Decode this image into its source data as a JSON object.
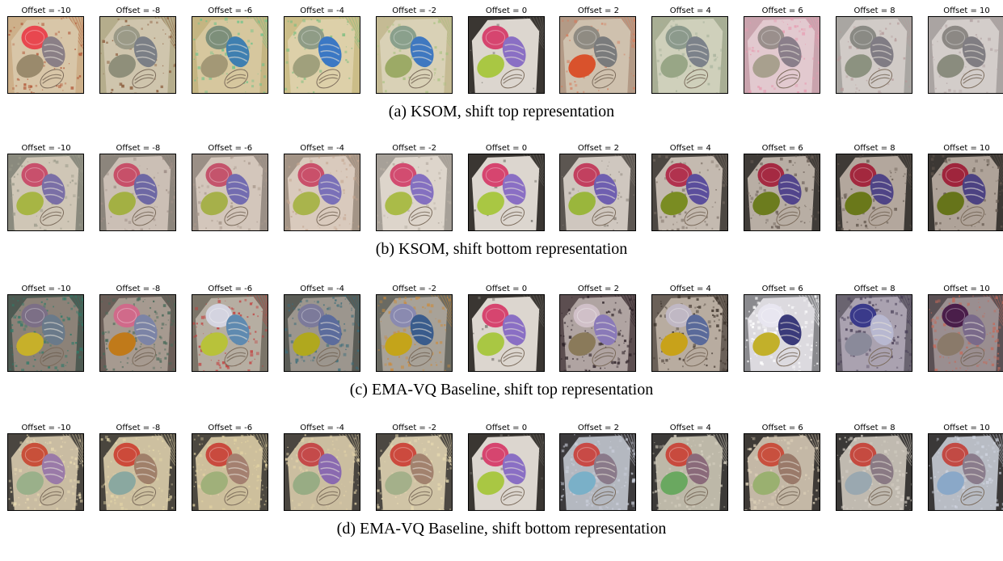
{
  "rows": [
    {
      "caption": "(a) KSOM, shift top representation",
      "panels": [
        {
          "label": "Offset = -10",
          "bg": "#cdb08a",
          "board": "#d8c6a8",
          "m1": "#e8474f",
          "m2": "#8a7f86",
          "m3": "#9a8a6c",
          "noise": "#b35a3a",
          "noise_level": 0.35
        },
        {
          "label": "Offset = -8",
          "bg": "#b5ad8c",
          "board": "#cfc5ad",
          "m1": "#9b9a87",
          "m2": "#7b7f86",
          "m3": "#8f8f7a",
          "noise": "#8a5a3a",
          "noise_level": 0.3
        },
        {
          "label": "Offset = -6",
          "bg": "#c4b582",
          "board": "#d6c79e",
          "m1": "#7d8f7a",
          "m2": "#3f7fb0",
          "m3": "#a39876",
          "noise": "#6cc28a",
          "noise_level": 0.3
        },
        {
          "label": "Offset = -4",
          "bg": "#cbbd88",
          "board": "#ddd0a9",
          "m1": "#8f9c86",
          "m2": "#3b78c4",
          "m3": "#a0a07c",
          "noise": "#7bbd80",
          "noise_level": 0.25
        },
        {
          "label": "Offset = -2",
          "bg": "#c5bb94",
          "board": "#d9d1b6",
          "m1": "#8aa08c",
          "m2": "#3f78c0",
          "m3": "#9caa66",
          "noise": "#a7c280",
          "noise_level": 0.2
        },
        {
          "label": "Offset = 0",
          "bg": "#3a3632",
          "board": "#dcd6cf",
          "m1": "#d6456f",
          "m2": "#8a6fc4",
          "m3": "#a9c743",
          "noise": "#6d6a64",
          "noise_level": 0.05
        },
        {
          "label": "Offset = 2",
          "bg": "#b39a86",
          "board": "#cfc1ae",
          "m1": "#8f8b82",
          "m2": "#7a7b7c",
          "m3": "#d9522c",
          "noise": "#d77a5a",
          "noise_level": 0.25
        },
        {
          "label": "Offset = 4",
          "bg": "#a8ae94",
          "board": "#cfd0bb",
          "m1": "#8c9a8c",
          "m2": "#7c828a",
          "m3": "#98a686",
          "noise": "#a4b09a",
          "noise_level": 0.25
        },
        {
          "label": "Offset = 6",
          "bg": "#c9a3ad",
          "board": "#e2c9cf",
          "m1": "#9a8f8c",
          "m2": "#8a7e8a",
          "m3": "#a8a08e",
          "noise": "#e89ab0",
          "noise_level": 0.35
        },
        {
          "label": "Offset = 8",
          "bg": "#a9a6a2",
          "board": "#d1cbc7",
          "m1": "#8a8a84",
          "m2": "#807c84",
          "m3": "#8c9280",
          "noise": "#b59a9a",
          "noise_level": 0.25
        },
        {
          "label": "Offset = 10",
          "bg": "#aaa4a2",
          "board": "#d3cdca",
          "m1": "#8c8884",
          "m2": "#807d82",
          "m3": "#8a8c7e",
          "noise": "#b3a3a3",
          "noise_level": 0.25
        }
      ]
    },
    {
      "caption": "(b) KSOM, shift bottom representation",
      "panels": [
        {
          "label": "Offset = -10",
          "bg": "#8a8a7e",
          "board": "#cfc6b6",
          "m1": "#c8506c",
          "m2": "#7a6fa6",
          "m3": "#a7b544",
          "noise": "#9a9a8a",
          "noise_level": 0.3
        },
        {
          "label": "Offset = -8",
          "bg": "#8c857c",
          "board": "#cbbfb5",
          "m1": "#c75069",
          "m2": "#6e68a4",
          "m3": "#a3b043",
          "noise": "#9c8c84",
          "noise_level": 0.3
        },
        {
          "label": "Offset = -6",
          "bg": "#9a8f86",
          "board": "#d3c6bb",
          "m1": "#c4546c",
          "m2": "#736cb0",
          "m3": "#a6b04a",
          "noise": "#a6968a",
          "noise_level": 0.3
        },
        {
          "label": "Offset = -4",
          "bg": "#a39486",
          "board": "#d9cabd",
          "m1": "#c9506a",
          "m2": "#7a70b8",
          "m3": "#a9b44c",
          "noise": "#c4a690",
          "noise_level": 0.3
        },
        {
          "label": "Offset = -2",
          "bg": "#a6a098",
          "board": "#ddd5cb",
          "m1": "#d24c70",
          "m2": "#8470c0",
          "m3": "#aabb48",
          "noise": "#b6ada2",
          "noise_level": 0.25
        },
        {
          "label": "Offset = 0",
          "bg": "#3a3632",
          "board": "#dcd6cf",
          "m1": "#d6456f",
          "m2": "#8a6fc4",
          "m3": "#a9c743",
          "noise": "#6d6a64",
          "noise_level": 0.05
        },
        {
          "label": "Offset = 2",
          "bg": "#5c5651",
          "board": "#cfc7bf",
          "m1": "#c2405f",
          "m2": "#6f5fb0",
          "m3": "#9ab63c",
          "noise": "#8a827a",
          "noise_level": 0.2
        },
        {
          "label": "Offset = 4",
          "bg": "#4c4742",
          "board": "#c4bab0",
          "m1": "#b1324e",
          "m2": "#5b4e9c",
          "m3": "#7a8c22",
          "noise": "#7a6e64",
          "noise_level": 0.3
        },
        {
          "label": "Offset = 6",
          "bg": "#403c38",
          "board": "#b8aea4",
          "m1": "#a52a42",
          "m2": "#52458c",
          "m3": "#6c7c1e",
          "noise": "#6c6058",
          "noise_level": 0.35
        },
        {
          "label": "Offset = 8",
          "bg": "#3e3a36",
          "board": "#b3a79d",
          "m1": "#a3283e",
          "m2": "#4f4486",
          "m3": "#6a781a",
          "noise": "#665b52",
          "noise_level": 0.35
        },
        {
          "label": "Offset = 10",
          "bg": "#3c3834",
          "board": "#afa399",
          "m1": "#9f253c",
          "m2": "#4c4282",
          "m3": "#66741a",
          "noise": "#62574e",
          "noise_level": 0.35
        }
      ]
    },
    {
      "caption": "(c) EMA-VQ Baseline, shift top representation",
      "panels": [
        {
          "label": "Offset = -10",
          "bg": "#4f5a52",
          "board": "#8c8278",
          "m1": "#7c6f86",
          "m2": "#6a7a8a",
          "m3": "#c7b02a",
          "noise": "#2f7a68",
          "noise_level": 0.55
        },
        {
          "label": "Offset = -8",
          "bg": "#6a5e58",
          "board": "#a69a90",
          "m1": "#d06a8a",
          "m2": "#7c84a6",
          "m3": "#c07a1a",
          "noise": "#4a6a5a",
          "noise_level": 0.5
        },
        {
          "label": "Offset = -6",
          "bg": "#7a7468",
          "board": "#b6aea2",
          "m1": "#d4d4e0",
          "m2": "#5f8ab0",
          "m3": "#b8c23a",
          "noise": "#c43a3a",
          "noise_level": 0.5
        },
        {
          "label": "Offset = -4",
          "bg": "#5a5c56",
          "board": "#9c968e",
          "m1": "#7c7a9a",
          "m2": "#5c6c9c",
          "m3": "#b0a81e",
          "noise": "#3a6c7a",
          "noise_level": 0.5
        },
        {
          "label": "Offset = -2",
          "bg": "#6a6a62",
          "board": "#a8a298",
          "m1": "#8a8ab0",
          "m2": "#3a5c8c",
          "m3": "#c4a41a",
          "noise": "#cc8a3a",
          "noise_level": 0.45
        },
        {
          "label": "Offset = 0",
          "bg": "#3a3632",
          "board": "#dcd6cf",
          "m1": "#d6456f",
          "m2": "#8a6fc4",
          "m3": "#a9c743",
          "noise": "#6d6a64",
          "noise_level": 0.05
        },
        {
          "label": "Offset = 2",
          "bg": "#5c4e50",
          "board": "#b0a4a2",
          "m1": "#d0c0c8",
          "m2": "#8a7ab8",
          "m3": "#8a7a5a",
          "noise": "#2a1e24",
          "noise_level": 0.55
        },
        {
          "label": "Offset = 4",
          "bg": "#6a6058",
          "board": "#b8aca0",
          "m1": "#c0b8c4",
          "m2": "#5a6a9a",
          "m3": "#c8a21a",
          "noise": "#3a3028",
          "noise_level": 0.55
        },
        {
          "label": "Offset = 6",
          "bg": "#8a8a8e",
          "board": "#dcdadf",
          "m1": "#e8e6f0",
          "m2": "#3a3a7a",
          "m3": "#c2b02a",
          "noise": "#ffffff",
          "noise_level": 0.55
        },
        {
          "label": "Offset = 8",
          "bg": "#6a6470",
          "board": "#aaa2b0",
          "m1": "#3a3a8a",
          "m2": "#b8b8d0",
          "m3": "#8a8a9a",
          "noise": "#4a4058",
          "noise_level": 0.55
        },
        {
          "label": "Offset = 10",
          "bg": "#5a5054",
          "board": "#9a8e90",
          "m1": "#4a1e4a",
          "m2": "#7a6a8a",
          "m3": "#8a7a6a",
          "noise": "#c46a5a",
          "noise_level": 0.55
        }
      ]
    },
    {
      "caption": "(d) EMA-VQ Baseline, shift bottom representation",
      "panels": [
        {
          "label": "Offset = -10",
          "bg": "#4a4640",
          "board": "#c9bca2",
          "m1": "#c8503a",
          "m2": "#9a7aa8",
          "m3": "#9ab08a",
          "noise": "#e8d9b0",
          "noise_level": 0.55
        },
        {
          "label": "Offset = -8",
          "bg": "#4a463e",
          "board": "#cdc0a0",
          "m1": "#cc4a3a",
          "m2": "#a0806a",
          "m3": "#8aa8a0",
          "noise": "#e4d6a8",
          "noise_level": 0.55
        },
        {
          "label": "Offset = -6",
          "bg": "#4c4840",
          "board": "#cdbf9c",
          "m1": "#c94a3e",
          "m2": "#a48070",
          "m3": "#a0b07a",
          "noise": "#e2d2a2",
          "noise_level": 0.55
        },
        {
          "label": "Offset = -4",
          "bg": "#4a4640",
          "board": "#cbbea0",
          "m1": "#c44a4a",
          "m2": "#8a6ab0",
          "m3": "#98ac84",
          "noise": "#e0d0a6",
          "noise_level": 0.55
        },
        {
          "label": "Offset = -2",
          "bg": "#4c4842",
          "board": "#d0c4a6",
          "m1": "#cc4a3e",
          "m2": "#a2826e",
          "m3": "#a4b08a",
          "noise": "#e6d8b0",
          "noise_level": 0.55
        },
        {
          "label": "Offset = 0",
          "bg": "#3a3632",
          "board": "#dcd6cf",
          "m1": "#d6456f",
          "m2": "#8a6fc4",
          "m3": "#a9c743",
          "noise": "#6d6a64",
          "noise_level": 0.05
        },
        {
          "label": "Offset = 2",
          "bg": "#3c3a3c",
          "board": "#b4b8c0",
          "m1": "#c84a46",
          "m2": "#8a7a8a",
          "m3": "#7ab0c8",
          "noise": "#c8ccd8",
          "noise_level": 0.55
        },
        {
          "label": "Offset = 4",
          "bg": "#3c3a38",
          "board": "#bdb8a8",
          "m1": "#c84a3e",
          "m2": "#8a6a7a",
          "m3": "#6aa860",
          "noise": "#d6d0c0",
          "noise_level": 0.55
        },
        {
          "label": "Offset = 6",
          "bg": "#3e3a36",
          "board": "#c4b8a6",
          "m1": "#c8503e",
          "m2": "#9a7a6a",
          "m3": "#9ab070",
          "noise": "#ddd0b8",
          "noise_level": 0.55
        },
        {
          "label": "Offset = 8",
          "bg": "#3a3836",
          "board": "#c0bab0",
          "m1": "#c54a40",
          "m2": "#8a7a84",
          "m3": "#9aa8b0",
          "noise": "#d8d2c8",
          "noise_level": 0.55
        },
        {
          "label": "Offset = 10",
          "bg": "#3a3838",
          "board": "#b8bcc4",
          "m1": "#c24a44",
          "m2": "#8a7c8c",
          "m3": "#8aa8c8",
          "noise": "#cfd4e0",
          "noise_level": 0.55
        }
      ]
    }
  ]
}
